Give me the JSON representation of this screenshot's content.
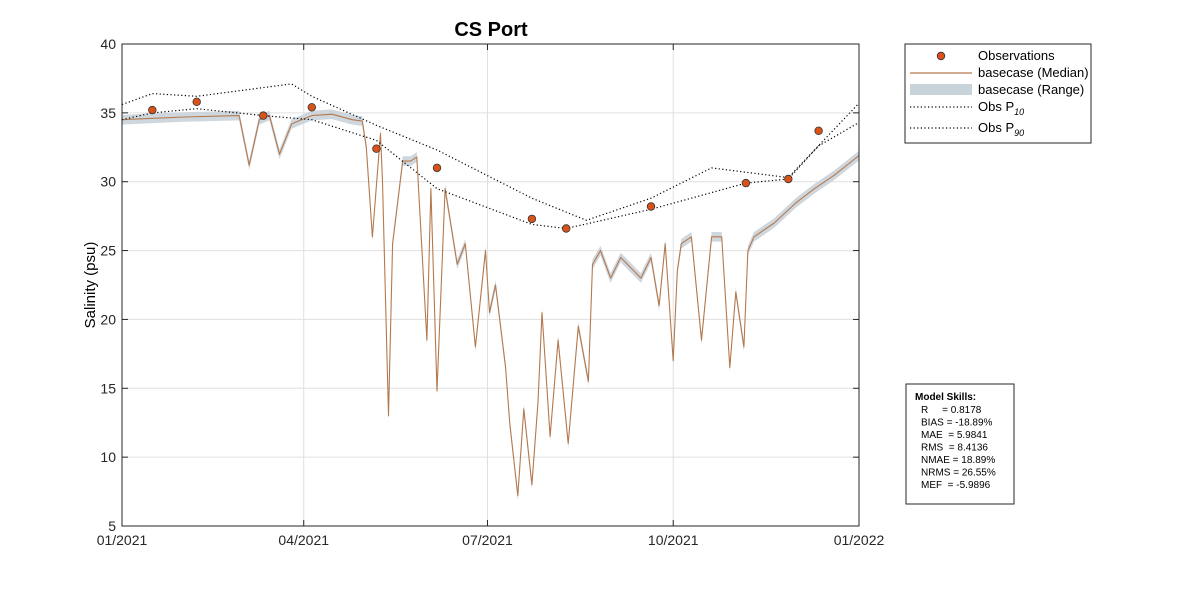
{
  "chart_data": {
    "type": "line",
    "title": "CS Port",
    "ylabel": "Salinity (psu)",
    "xlabel": "",
    "ylim": [
      5,
      40
    ],
    "yticks": [
      5,
      10,
      15,
      20,
      25,
      30,
      35,
      40
    ],
    "xlim": [
      "2021-01-01",
      "2022-01-01"
    ],
    "xticks": [
      "2021-01-01",
      "2021-04-01",
      "2021-07-01",
      "2021-10-01",
      "2022-01-01"
    ],
    "xticklabels": [
      "01/2021",
      "04/2021",
      "07/2021",
      "10/2021",
      "01/2022"
    ],
    "grid": true,
    "legend_position": "outside-top-right",
    "legend": [
      {
        "label": "Observations",
        "sub": ""
      },
      {
        "label": "basecase (Median)",
        "sub": ""
      },
      {
        "label": "basecase (Range)",
        "sub": ""
      },
      {
        "label": "Obs P",
        "sub": "10"
      },
      {
        "label": "Obs P",
        "sub": "90"
      }
    ],
    "colors": {
      "obs_fill": "#d95319",
      "median": "#b5794e",
      "range": "#c9d3da",
      "pctl": "#000000",
      "grid": "#e0e0e0"
    },
    "series": [
      {
        "name": "Observations",
        "kind": "markers",
        "x": [
          "2021-01-16",
          "2021-02-07",
          "2021-03-12",
          "2021-04-05",
          "2021-05-07",
          "2021-06-06",
          "2021-07-23",
          "2021-08-09",
          "2021-09-20",
          "2021-11-06",
          "2021-11-27",
          "2021-12-12"
        ],
        "y": [
          35.2,
          35.8,
          34.8,
          35.4,
          32.4,
          31.0,
          27.3,
          26.6,
          28.2,
          29.9,
          30.2,
          33.7
        ]
      },
      {
        "name": "basecase (Median)",
        "kind": "line",
        "x": [
          "2021-01-01",
          "2021-01-15",
          "2021-02-01",
          "2021-02-28",
          "2021-03-05",
          "2021-03-10",
          "2021-03-15",
          "2021-03-20",
          "2021-03-26",
          "2021-04-05",
          "2021-04-15",
          "2021-04-25",
          "2021-04-30",
          "2021-05-02",
          "2021-05-05",
          "2021-05-09",
          "2021-05-10",
          "2021-05-13",
          "2021-05-15",
          "2021-05-20",
          "2021-05-24",
          "2021-05-27",
          "2021-06-01",
          "2021-06-03",
          "2021-06-06",
          "2021-06-10",
          "2021-06-16",
          "2021-06-20",
          "2021-06-25",
          "2021-06-30",
          "2021-07-02",
          "2021-07-05",
          "2021-07-10",
          "2021-07-12",
          "2021-07-16",
          "2021-07-19",
          "2021-07-23",
          "2021-07-26",
          "2021-07-28",
          "2021-08-01",
          "2021-08-05",
          "2021-08-10",
          "2021-08-15",
          "2021-08-20",
          "2021-08-22",
          "2021-08-26",
          "2021-08-31",
          "2021-09-05",
          "2021-09-15",
          "2021-09-20",
          "2021-09-24",
          "2021-09-27",
          "2021-10-01",
          "2021-10-03",
          "2021-10-05",
          "2021-10-10",
          "2021-10-15",
          "2021-10-20",
          "2021-10-25",
          "2021-10-29",
          "2021-11-01",
          "2021-11-05",
          "2021-11-07",
          "2021-11-10",
          "2021-11-20",
          "2021-12-01",
          "2021-12-10",
          "2021-12-20",
          "2022-01-01"
        ],
        "y": [
          34.5,
          34.6,
          34.7,
          34.8,
          31.2,
          34.5,
          34.8,
          32.0,
          34.2,
          34.8,
          34.9,
          34.5,
          34.4,
          32.5,
          26.0,
          33.5,
          30.0,
          13.0,
          25.5,
          31.5,
          31.5,
          31.8,
          18.5,
          29.5,
          14.8,
          29.5,
          24.0,
          25.5,
          18.0,
          25.0,
          20.5,
          22.5,
          16.5,
          12.5,
          7.2,
          13.5,
          8.0,
          14.0,
          20.5,
          11.5,
          18.5,
          11.0,
          19.5,
          15.5,
          24.0,
          25.0,
          23.0,
          24.5,
          23.0,
          24.5,
          21.0,
          25.5,
          17.0,
          23.5,
          25.5,
          26.0,
          18.5,
          26.0,
          26.0,
          16.5,
          22.0,
          18.0,
          25.0,
          26.0,
          27.0,
          28.5,
          29.5,
          30.5,
          31.9
        ]
      },
      {
        "name": "Obs P10",
        "kind": "line",
        "x": [
          "2021-01-01",
          "2021-01-16",
          "2021-02-07",
          "2021-03-12",
          "2021-04-05",
          "2021-05-07",
          "2021-06-06",
          "2021-07-23",
          "2021-08-09",
          "2021-09-20",
          "2021-11-06",
          "2021-11-27",
          "2021-12-12",
          "2022-01-01"
        ],
        "y": [
          34.5,
          35.0,
          35.3,
          34.8,
          34.5,
          33.0,
          29.5,
          26.9,
          26.6,
          28.0,
          29.9,
          30.2,
          32.6,
          34.3
        ]
      },
      {
        "name": "Obs P90",
        "kind": "line",
        "x": [
          "2021-01-01",
          "2021-01-16",
          "2021-02-07",
          "2021-03-26",
          "2021-04-05",
          "2021-05-07",
          "2021-06-06",
          "2021-07-23",
          "2021-08-19",
          "2021-09-20",
          "2021-10-20",
          "2021-11-27",
          "2022-01-01"
        ],
        "y": [
          35.6,
          36.4,
          36.2,
          37.1,
          36.2,
          34.1,
          32.3,
          28.8,
          27.2,
          28.8,
          31.0,
          30.3,
          35.7
        ]
      }
    ]
  },
  "skills": {
    "title": "Model Skills:",
    "lines": [
      "R     = 0.8178",
      "BIAS = -18.89%",
      "MAE  = 5.9841",
      "RMS  = 8.4136",
      "NMAE = 18.89%",
      "NRMS = 26.55%",
      "MEF  = -5.9896"
    ]
  }
}
